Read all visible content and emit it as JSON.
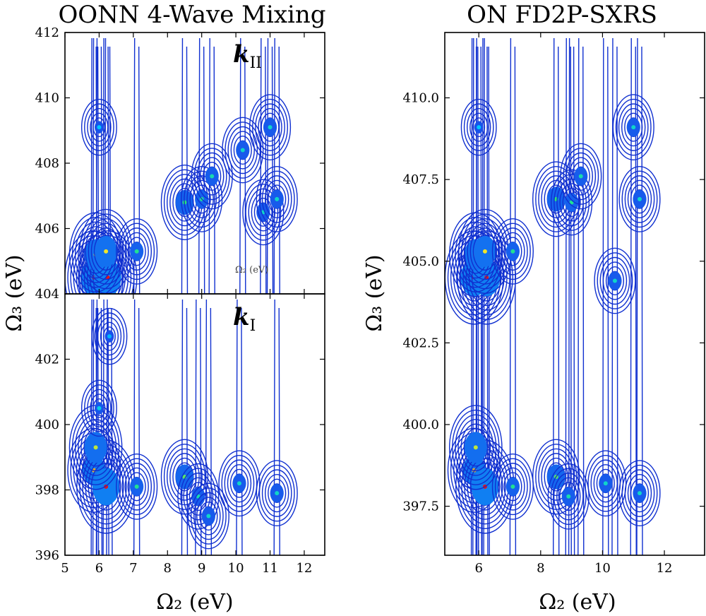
{
  "chart_data": [
    {
      "type": "contour",
      "title": "OONN 4-Wave Mixing",
      "xlabel": "Ω₂ (eV)",
      "ylabel": "Ω₃ (eV)",
      "panels": [
        {
          "name": "kII",
          "label_main": "k",
          "label_sub": "II",
          "xlim": [
            5,
            12.6
          ],
          "ylim": [
            404,
            412
          ],
          "xticks": [
            "5",
            "6",
            "7",
            "8",
            "9",
            "10",
            "11",
            "12"
          ],
          "yticks": [
            "404",
            "406",
            "408",
            "410",
            "412"
          ],
          "ytick_values": [
            404,
            406,
            408,
            410,
            412
          ],
          "annotation": "Ω₂ (eV)",
          "peaks": [
            {
              "x": 5.85,
              "y": 404.5,
              "intensity": 1.0
            },
            {
              "x": 6.25,
              "y": 404.5,
              "intensity": 1.0
            },
            {
              "x": 5.9,
              "y": 405.2,
              "intensity": 0.8
            },
            {
              "x": 6.2,
              "y": 405.3,
              "intensity": 0.8
            },
            {
              "x": 7.1,
              "y": 405.3,
              "intensity": 0.55
            },
            {
              "x": 6.0,
              "y": 409.1,
              "intensity": 0.35
            },
            {
              "x": 8.5,
              "y": 406.8,
              "intensity": 0.6
            },
            {
              "x": 9.0,
              "y": 406.9,
              "intensity": 0.55
            },
            {
              "x": 9.3,
              "y": 407.6,
              "intensity": 0.5
            },
            {
              "x": 10.2,
              "y": 408.4,
              "intensity": 0.45
            },
            {
              "x": 11.0,
              "y": 409.1,
              "intensity": 0.45
            },
            {
              "x": 10.8,
              "y": 406.5,
              "intensity": 0.45
            },
            {
              "x": 11.2,
              "y": 406.9,
              "intensity": 0.45
            }
          ]
        },
        {
          "name": "kI",
          "label_main": "k",
          "label_sub": "I",
          "xlim": [
            5,
            12.6
          ],
          "ylim": [
            396,
            404
          ],
          "xticks": [
            "5",
            "6",
            "7",
            "8",
            "9",
            "10",
            "11",
            "12"
          ],
          "yticks": [
            "396",
            "398",
            "400",
            "402"
          ],
          "ytick_values": [
            396,
            398,
            400,
            402
          ],
          "peaks": [
            {
              "x": 5.85,
              "y": 398.6,
              "intensity": 0.85
            },
            {
              "x": 6.2,
              "y": 398.1,
              "intensity": 1.0
            },
            {
              "x": 5.9,
              "y": 399.3,
              "intensity": 0.75
            },
            {
              "x": 6.0,
              "y": 400.5,
              "intensity": 0.4
            },
            {
              "x": 7.1,
              "y": 398.1,
              "intensity": 0.55
            },
            {
              "x": 6.3,
              "y": 402.7,
              "intensity": 0.3
            },
            {
              "x": 8.5,
              "y": 398.4,
              "intensity": 0.65
            },
            {
              "x": 8.9,
              "y": 397.8,
              "intensity": 0.5
            },
            {
              "x": 9.2,
              "y": 397.2,
              "intensity": 0.45
            },
            {
              "x": 10.1,
              "y": 398.2,
              "intensity": 0.45
            },
            {
              "x": 11.2,
              "y": 397.9,
              "intensity": 0.45
            }
          ]
        }
      ]
    },
    {
      "type": "contour",
      "title": "ON FD2P-SXRS",
      "xlabel": "Ω₂ (eV)",
      "ylabel": "Ω₃ (eV)",
      "xlim": [
        4.9,
        13.3
      ],
      "ylim": [
        396,
        412
      ],
      "xticks": [
        "6",
        "8",
        "10",
        "12"
      ],
      "xtick_values": [
        6,
        8,
        10,
        12
      ],
      "yticks": [
        "397.5",
        "400.0",
        "402.5",
        "405.0",
        "407.5",
        "410.0"
      ],
      "ytick_values": [
        397.5,
        400.0,
        402.5,
        405.0,
        407.5,
        410.0
      ],
      "peaks": [
        {
          "x": 5.85,
          "y": 404.5,
          "intensity": 1.0
        },
        {
          "x": 6.25,
          "y": 404.5,
          "intensity": 1.0
        },
        {
          "x": 5.9,
          "y": 405.2,
          "intensity": 0.8
        },
        {
          "x": 6.2,
          "y": 405.3,
          "intensity": 0.8
        },
        {
          "x": 7.1,
          "y": 405.3,
          "intensity": 0.55
        },
        {
          "x": 6.0,
          "y": 409.1,
          "intensity": 0.35
        },
        {
          "x": 8.5,
          "y": 406.9,
          "intensity": 0.6
        },
        {
          "x": 9.0,
          "y": 406.8,
          "intensity": 0.55
        },
        {
          "x": 9.3,
          "y": 407.6,
          "intensity": 0.5
        },
        {
          "x": 10.4,
          "y": 404.4,
          "intensity": 0.45
        },
        {
          "x": 11.0,
          "y": 409.1,
          "intensity": 0.45
        },
        {
          "x": 11.2,
          "y": 406.9,
          "intensity": 0.45
        },
        {
          "x": 5.85,
          "y": 398.6,
          "intensity": 0.85
        },
        {
          "x": 6.2,
          "y": 398.1,
          "intensity": 1.0
        },
        {
          "x": 5.9,
          "y": 399.3,
          "intensity": 0.75
        },
        {
          "x": 7.1,
          "y": 398.1,
          "intensity": 0.55
        },
        {
          "x": 8.5,
          "y": 398.4,
          "intensity": 0.65
        },
        {
          "x": 8.9,
          "y": 397.8,
          "intensity": 0.5
        },
        {
          "x": 10.1,
          "y": 398.2,
          "intensity": 0.45
        },
        {
          "x": 11.2,
          "y": 397.9,
          "intensity": 0.45
        }
      ]
    }
  ]
}
